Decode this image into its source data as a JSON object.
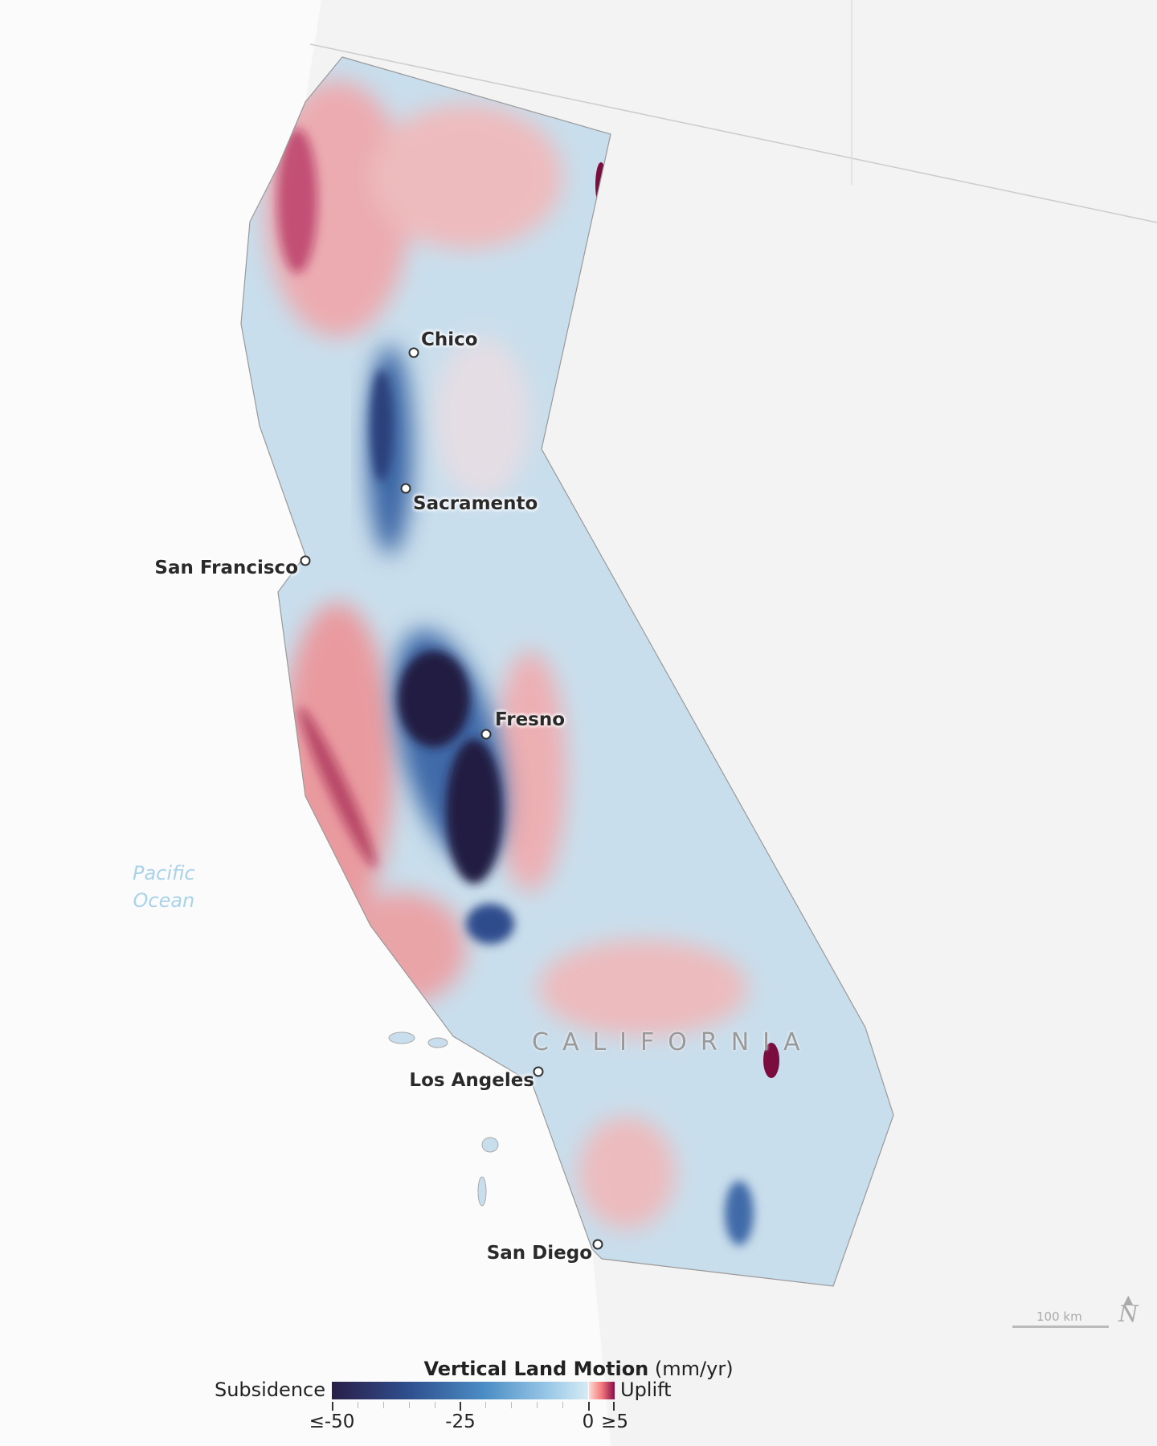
{
  "map": {
    "region_label": "CALIFORNIA",
    "ocean_label_line1": "Pacific",
    "ocean_label_line2": "Ocean",
    "cities": [
      {
        "name": "Chico"
      },
      {
        "name": "Sacramento"
      },
      {
        "name": "San Francisco"
      },
      {
        "name": "Fresno"
      },
      {
        "name": "Los Angeles"
      },
      {
        "name": "San Diego"
      }
    ],
    "scale_bar": "100 km",
    "north_arrow_icon": "north-arrow-icon"
  },
  "legend": {
    "title_bold": "Vertical Land Motion",
    "title_unit": "(mm/yr)",
    "left_label": "Subsidence",
    "right_label": "Uplift",
    "ticks": [
      "≤-50",
      "-25",
      "0",
      "≥5"
    ],
    "range": [
      -50,
      5
    ],
    "colors": {
      "min": "#2a1e48",
      "mid": "#4c8ec6",
      "zero": "#d6ebf4",
      "max": "#8a0c4a"
    }
  }
}
